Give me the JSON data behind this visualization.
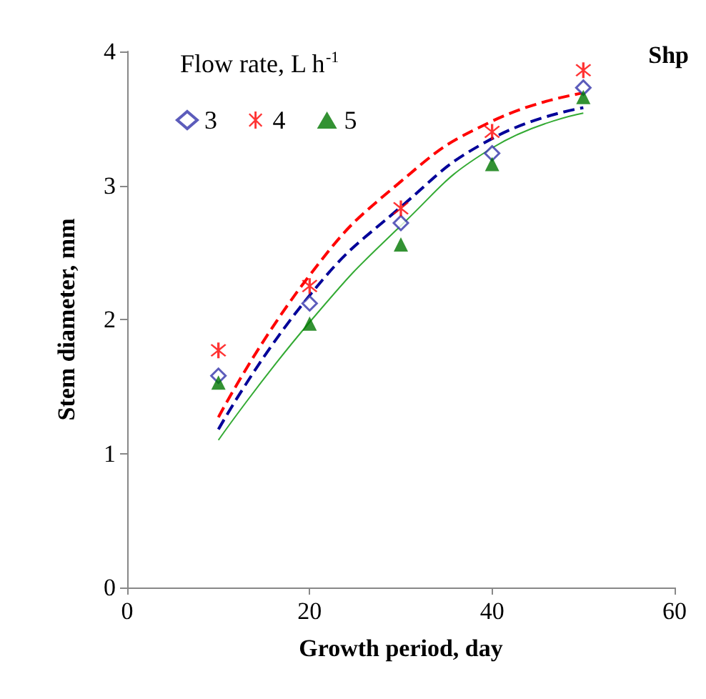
{
  "chart_data": {
    "type": "scatter",
    "xlabel": "Growth period, day",
    "ylabel": "Stem diameter, mm",
    "legend_title": "Flow rate, L h$^{-1}$",
    "annotations": [
      "Shp"
    ],
    "xlim": [
      0,
      60
    ],
    "xticks": [
      0,
      20,
      40,
      60
    ],
    "ylim": [
      0,
      4
    ],
    "yticks": [
      0,
      1,
      2,
      3,
      4
    ],
    "grid": false,
    "legend": "top left",
    "x": [
      10,
      20,
      30,
      40,
      50
    ],
    "series": [
      {
        "name": "3",
        "color": "#3333aa",
        "marker": "diamond",
        "values": [
          1.58,
          2.12,
          2.72,
          3.24,
          3.73
        ]
      },
      {
        "name": "4",
        "color": "#ff0000",
        "marker": "star",
        "values": [
          1.77,
          2.25,
          2.83,
          3.4,
          3.86
        ]
      },
      {
        "name": "5",
        "color": "#007700",
        "marker": "triangle",
        "values": [
          1.53,
          1.97,
          2.56,
          3.16,
          3.66
        ]
      },
      {
        "type": "line",
        "color": "#000099",
        "marker": "none",
        "line_style": "dashed",
        "values": [
          1.18,
          2.18,
          2.84,
          3.35,
          3.58
        ]
      },
      {
        "type": "line",
        "color": "#ff0000",
        "marker": "none",
        "line_style": "dashed",
        "values": [
          1.27,
          2.33,
          3.03,
          3.48,
          3.69
        ]
      },
      {
        "type": "line",
        "color": "#33aa33",
        "marker": "none",
        "line_style": "solid",
        "values": [
          1.1,
          1.98,
          2.7,
          3.28,
          3.54
        ]
      }
    ]
  }
}
